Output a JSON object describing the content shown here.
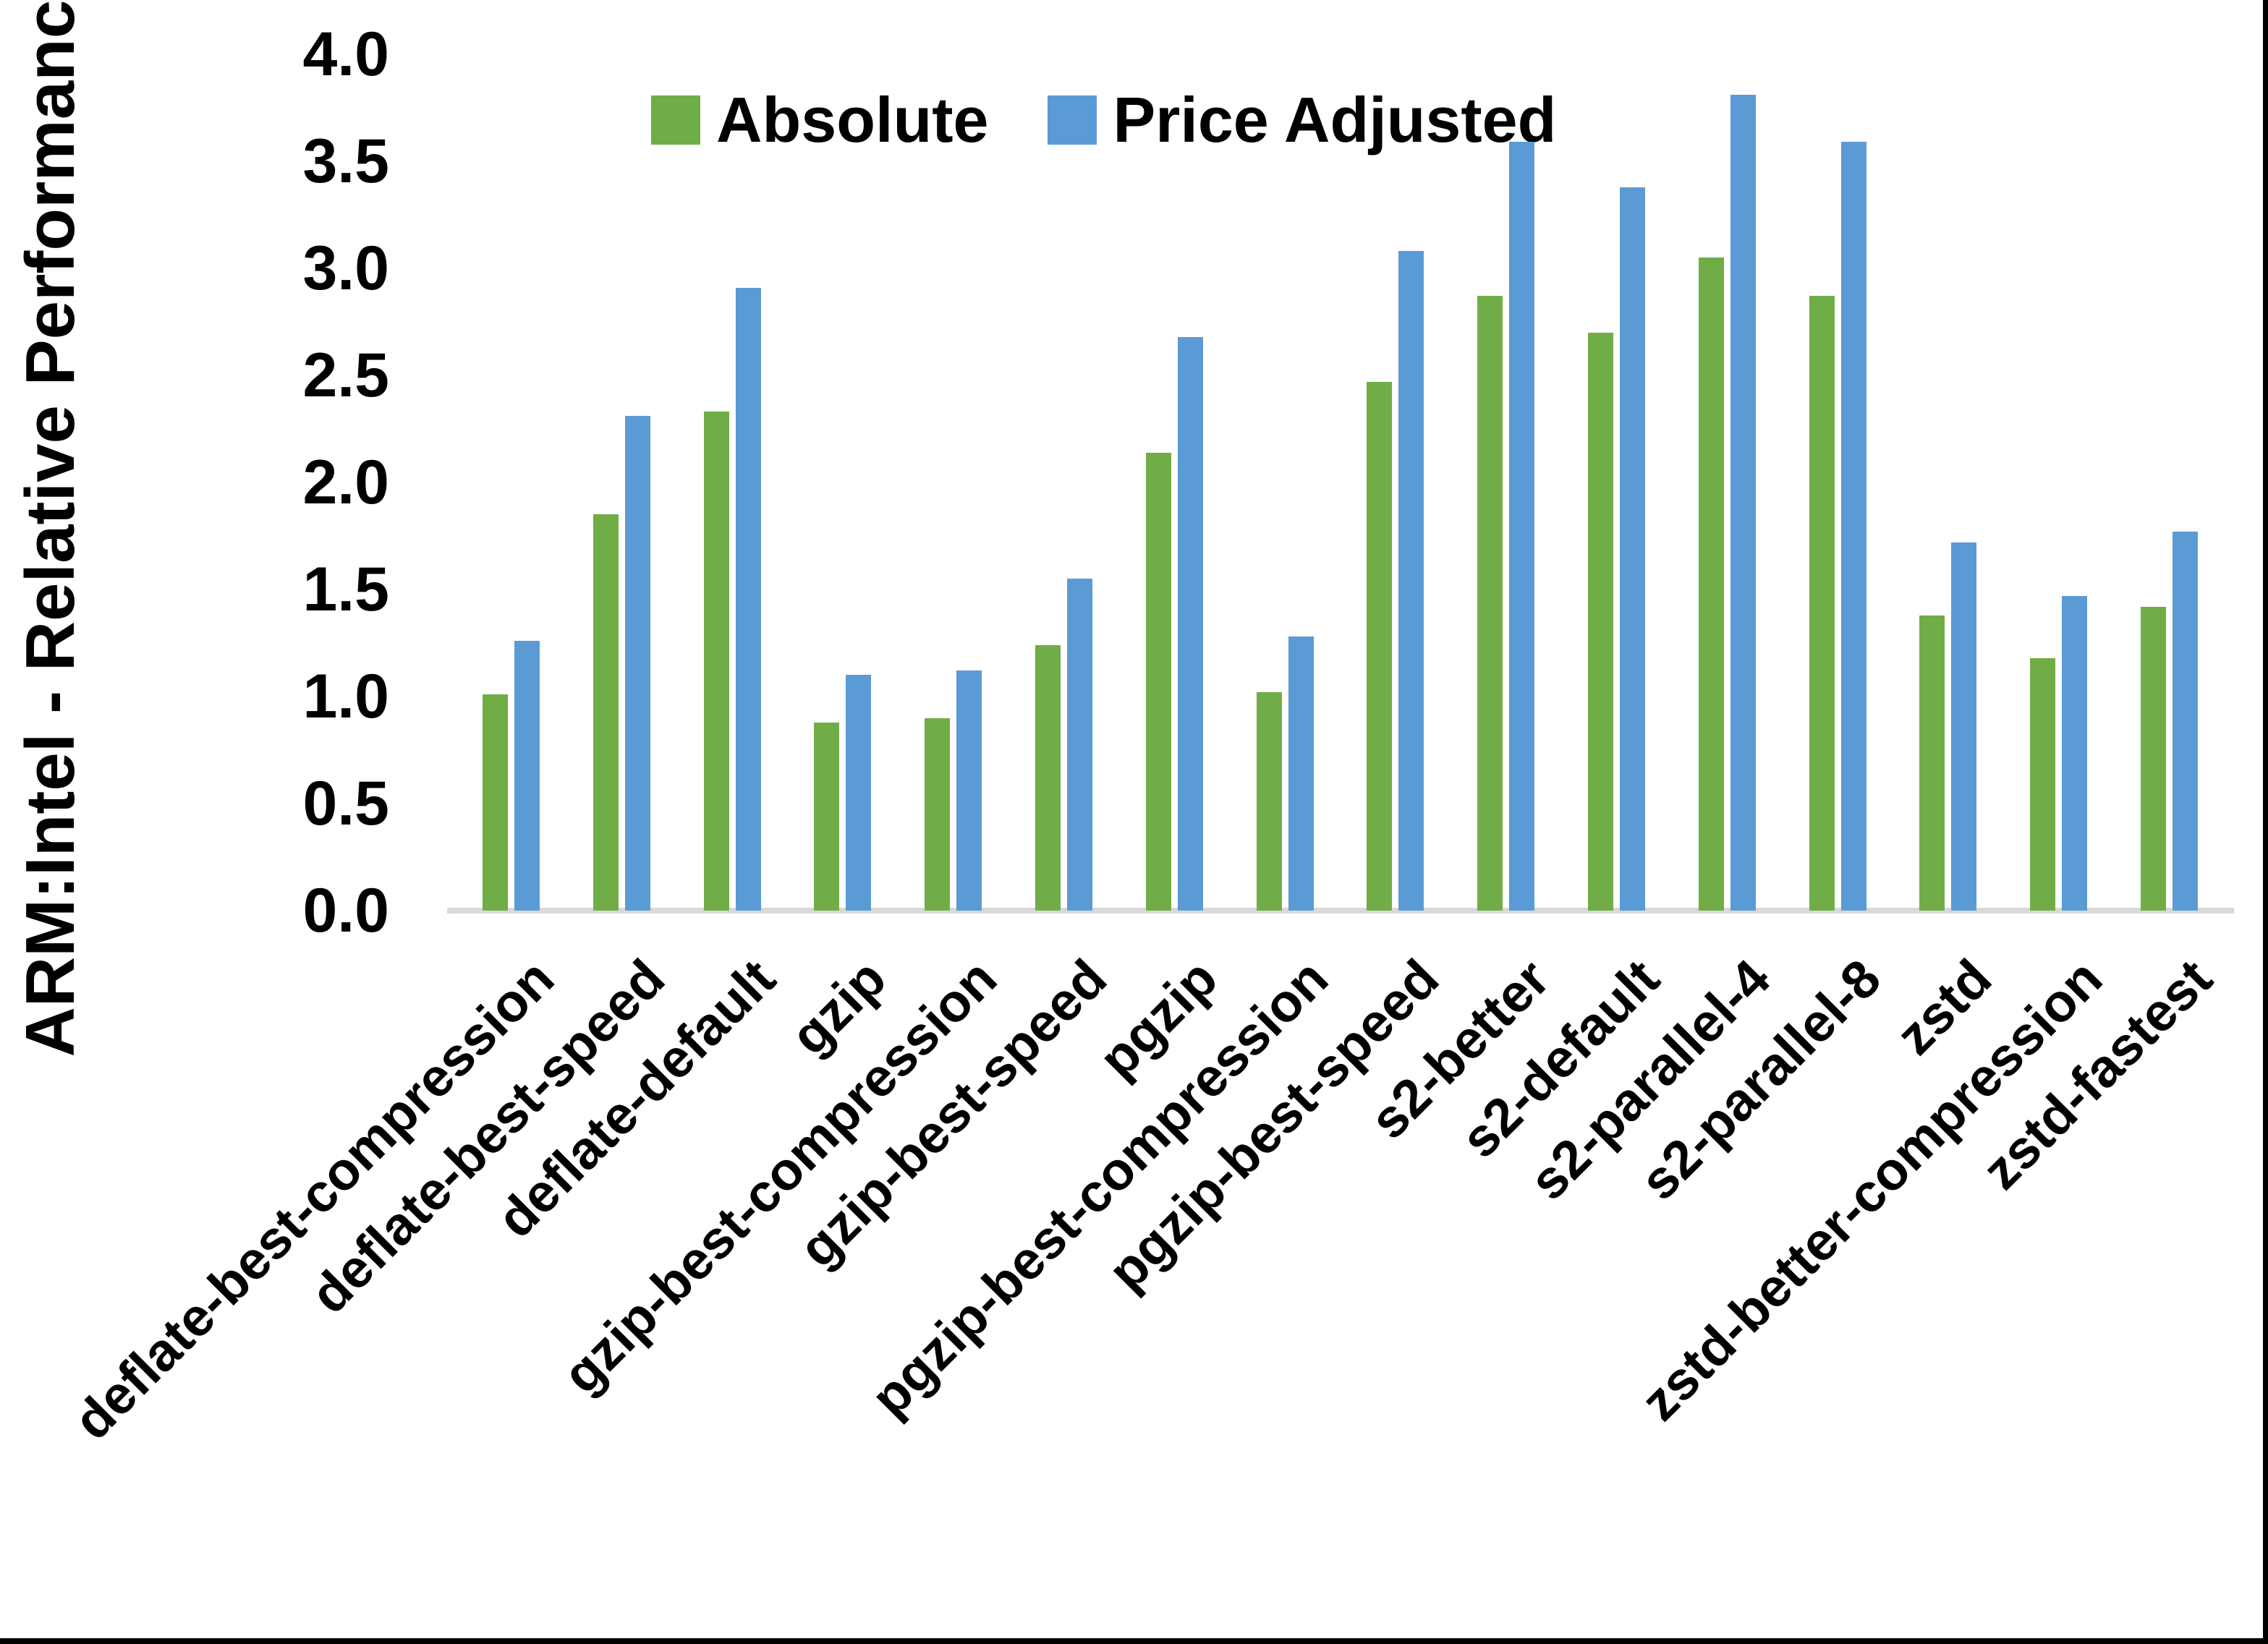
{
  "chart_data": {
    "type": "bar",
    "title": "",
    "xlabel": "",
    "ylabel": "ARM:Intel - Relative Performance",
    "ylim": [
      0.0,
      4.0
    ],
    "ytick_labels": [
      "0.0",
      "0.5",
      "1.0",
      "1.5",
      "2.0",
      "2.5",
      "3.0",
      "3.5",
      "4.0"
    ],
    "grid": "off",
    "legend_position": "top-center",
    "categories": [
      "deflate-best-compression",
      "deflate-best-speed",
      "deflate-default",
      "gzip",
      "gzip-best-compression",
      "gzip-best-speed",
      "pgzip",
      "pgzip-best-compression",
      "pgzip-best-speed",
      "s2-better",
      "s2-default",
      "s2-parallel-4",
      "s2-parallel-8",
      "zstd",
      "zstd-better-compression",
      "zstd-fastest"
    ],
    "series": [
      {
        "name": "Absolute",
        "color": "#70AD47",
        "values": [
          1.01,
          1.85,
          2.33,
          0.88,
          0.9,
          1.24,
          2.14,
          1.02,
          2.47,
          2.87,
          2.7,
          3.05,
          2.87,
          1.38,
          1.18,
          1.42
        ]
      },
      {
        "name": "Price Adjusted",
        "color": "#5B9BD5",
        "values": [
          1.26,
          2.31,
          2.91,
          1.1,
          1.12,
          1.55,
          2.68,
          1.28,
          3.08,
          3.59,
          3.38,
          3.81,
          3.59,
          1.72,
          1.47,
          1.77
        ]
      }
    ],
    "colors": {
      "axis_line": "#d9d9d9",
      "text": "#000000",
      "background": "#ffffff"
    }
  }
}
